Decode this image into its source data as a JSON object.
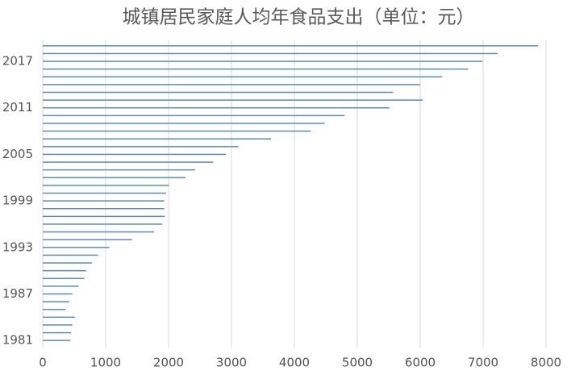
{
  "chart_data": {
    "type": "hbar",
    "title": "城镇居民家庭人均年食品支出（单位：元）",
    "categories": [
      "1981",
      null,
      null,
      null,
      null,
      null,
      "1987",
      null,
      null,
      null,
      null,
      null,
      "1993",
      null,
      null,
      null,
      null,
      null,
      "1999",
      null,
      null,
      null,
      null,
      null,
      "2005",
      null,
      null,
      null,
      null,
      null,
      "2011",
      null,
      null,
      null,
      null,
      null,
      "2017",
      null,
      null
    ],
    "values": [
      440,
      450,
      470,
      510,
      360,
      420,
      470,
      570,
      660,
      690,
      780,
      880,
      1060,
      1420,
      1770,
      1900,
      1940,
      1930,
      1930,
      1960,
      2010,
      2270,
      2420,
      2710,
      2910,
      3110,
      3630,
      4260,
      4480,
      4800,
      5510,
      6040,
      5570,
      6000,
      6350,
      6760,
      6990,
      7230,
      7870
    ],
    "color": "#5b8db8",
    "xlim": [
      0,
      8000
    ],
    "xticks": [
      0,
      1000,
      2000,
      3000,
      4000,
      5000,
      6000,
      7000,
      8000
    ],
    "grid": true
  }
}
